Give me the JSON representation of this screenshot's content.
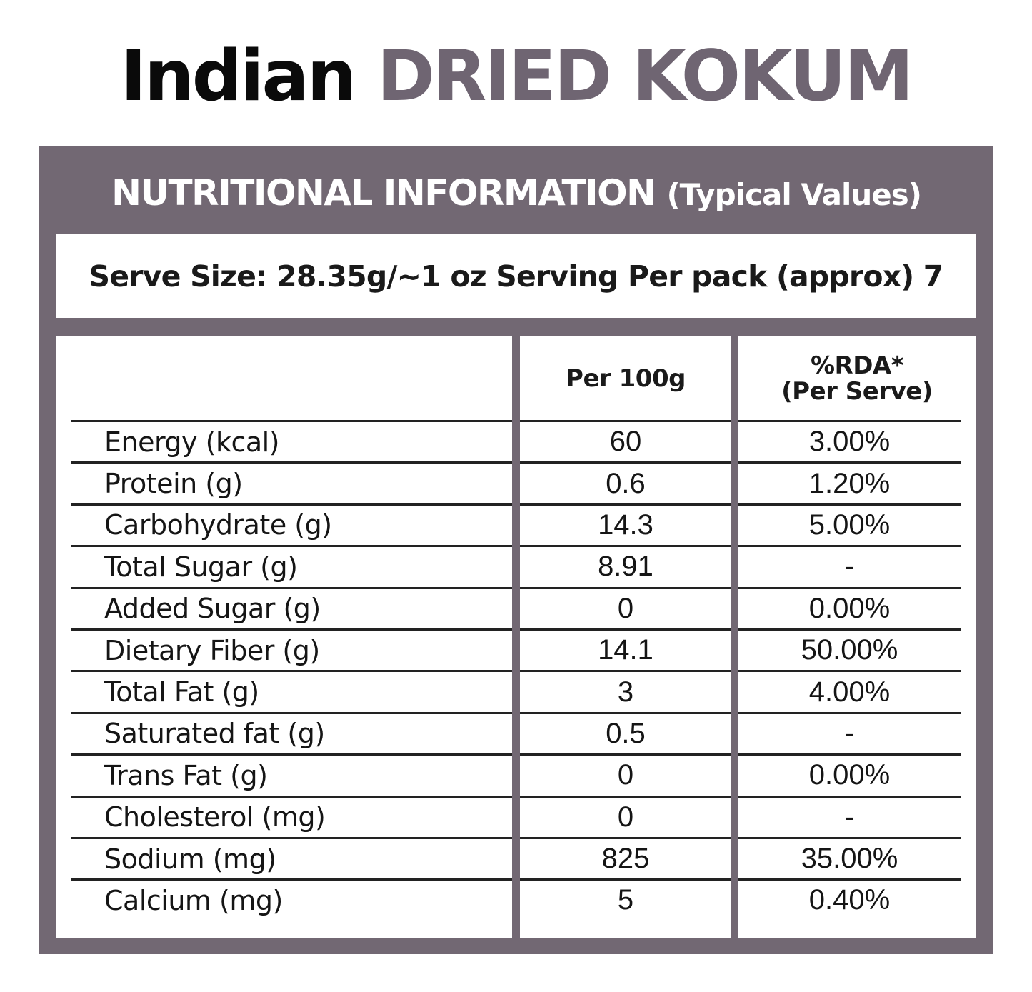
{
  "title": {
    "part1": "Indian",
    "part2": "DRIED KOKUM"
  },
  "panel": {
    "header_main": "NUTRITIONAL INFORMATION",
    "header_sub": "(Typical Values)",
    "serve_line": "Serve Size: 28.35g/~1 oz Serving Per pack (approx) 7"
  },
  "table": {
    "columns": {
      "nutrient": "",
      "per100g": "Per 100g",
      "rda_line1": "%RDA*",
      "rda_line2": "(Per Serve)"
    },
    "rows": [
      {
        "nutrient": "Energy (kcal)",
        "per100g": "60",
        "rda": "3.00%"
      },
      {
        "nutrient": "Protein (g)",
        "per100g": "0.6",
        "rda": "1.20%"
      },
      {
        "nutrient": "Carbohydrate (g)",
        "per100g": "14.3",
        "rda": "5.00%"
      },
      {
        "nutrient": "Total Sugar (g)",
        "per100g": "8.91",
        "rda": "-"
      },
      {
        "nutrient": "Added Sugar (g)",
        "per100g": "0",
        "rda": "0.00%"
      },
      {
        "nutrient": "Dietary Fiber (g)",
        "per100g": "14.1",
        "rda": "50.00%"
      },
      {
        "nutrient": "Total Fat (g)",
        "per100g": "3",
        "rda": "4.00%"
      },
      {
        "nutrient": "Saturated fat (g)",
        "per100g": "0.5",
        "rda": "-"
      },
      {
        "nutrient": "Trans Fat (g)",
        "per100g": "0",
        "rda": "0.00%"
      },
      {
        "nutrient": "Cholesterol (mg)",
        "per100g": "0",
        "rda": "-"
      },
      {
        "nutrient": "Sodium (mg)",
        "per100g": "825",
        "rda": "35.00%"
      },
      {
        "nutrient": "Calcium (mg)",
        "per100g": "5",
        "rda": "0.40%"
      }
    ]
  },
  "colors": {
    "accent": "#6f6572",
    "panel": "#726873",
    "text": "#111111",
    "background": "#ffffff"
  }
}
